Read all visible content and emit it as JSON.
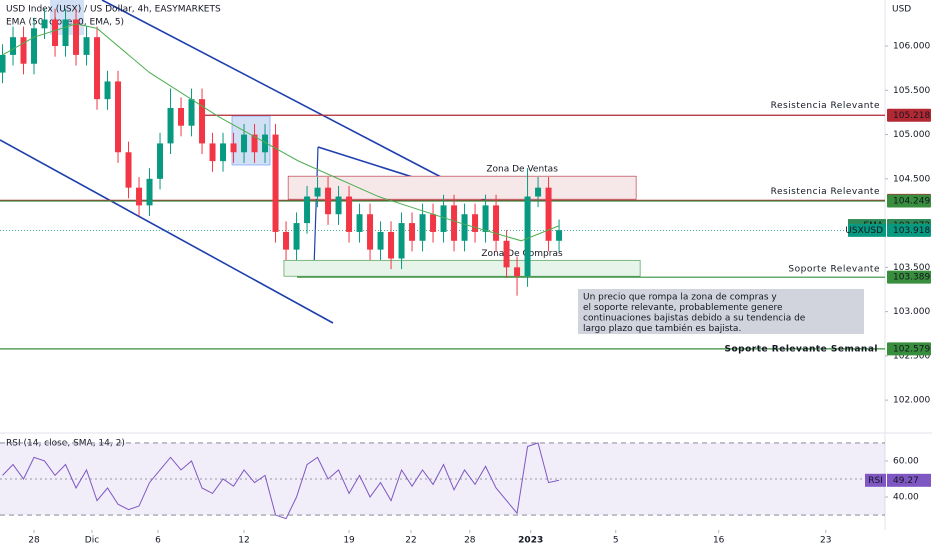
{
  "chart_data": {
    "type": "candlestick",
    "title": "USD Index (USX) / US Dollar, 4h, EASYMARKETS",
    "subtitle": "EMA (50, close, 0, EMA, 5)",
    "currency": "USD",
    "up_color": "#089981",
    "down_color": "#f23645",
    "x": [
      -1.5,
      -1,
      -0.5,
      0,
      0.5,
      1,
      1.5,
      2,
      2.5,
      3,
      3.5,
      4,
      4.5,
      5,
      5.5,
      6,
      6.5,
      7,
      7.5,
      8,
      8.5,
      9,
      9.5,
      10,
      10.5,
      11,
      11.5,
      12,
      12.5,
      13,
      13.5,
      14,
      14.5,
      15,
      15.5,
      16,
      16.5,
      17,
      17.5,
      18,
      18.5,
      19,
      19.5,
      20,
      20.5,
      21,
      21.5,
      22,
      22.5,
      23,
      23.5,
      24,
      24.5,
      25
    ],
    "open": [
      105.7,
      105.9,
      106.1,
      105.8,
      106.2,
      106.3,
      106.0,
      106.3,
      105.9,
      106.1,
      105.4,
      105.6,
      104.8,
      104.4,
      104.2,
      104.5,
      104.9,
      105.3,
      105.1,
      105.4,
      104.9,
      104.7,
      104.9,
      104.8,
      105.0,
      104.8,
      105.0,
      103.9,
      103.7,
      104.0,
      104.3,
      104.4,
      104.1,
      104.3,
      103.9,
      104.1,
      103.7,
      103.9,
      103.6,
      104.0,
      103.8,
      104.1,
      103.9,
      104.2,
      103.8,
      104.1,
      103.9,
      104.2,
      103.8,
      103.5,
      103.4,
      104.3,
      104.4,
      103.8
    ],
    "high": [
      106.02,
      106.22,
      106.22,
      106.32,
      106.42,
      106.42,
      106.42,
      106.42,
      106.22,
      106.22,
      105.72,
      105.72,
      104.92,
      104.52,
      104.62,
      105.02,
      105.52,
      105.42,
      105.52,
      105.52,
      105.02,
      105.02,
      105.02,
      105.12,
      105.12,
      105.12,
      105.12,
      104.02,
      104.12,
      104.42,
      104.52,
      104.52,
      104.42,
      104.42,
      104.22,
      104.22,
      104.02,
      104.02,
      104.12,
      104.12,
      104.22,
      104.22,
      104.32,
      104.32,
      104.22,
      104.22,
      104.32,
      104.32,
      103.92,
      103.62,
      104.62,
      104.52,
      104.52,
      104.04
    ],
    "low": [
      105.58,
      105.78,
      105.68,
      105.68,
      106.08,
      105.88,
      105.88,
      105.78,
      105.78,
      105.28,
      105.28,
      104.68,
      104.28,
      104.08,
      104.08,
      104.38,
      104.78,
      104.98,
      104.98,
      104.78,
      104.58,
      104.58,
      104.68,
      104.68,
      104.68,
      104.68,
      103.78,
      103.58,
      103.58,
      103.88,
      104.18,
      103.98,
      103.98,
      103.78,
      103.78,
      103.58,
      103.58,
      103.48,
      103.48,
      103.68,
      103.68,
      103.78,
      103.78,
      103.68,
      103.68,
      103.78,
      103.78,
      103.68,
      103.38,
      103.18,
      103.28,
      104.18,
      103.68,
      103.68
    ],
    "close": [
      105.9,
      106.1,
      105.8,
      106.2,
      106.3,
      106.0,
      106.3,
      105.9,
      106.1,
      105.4,
      105.6,
      104.8,
      104.4,
      104.2,
      104.5,
      104.9,
      105.3,
      105.1,
      105.4,
      104.9,
      104.7,
      104.9,
      104.8,
      105.0,
      104.8,
      105.0,
      103.9,
      103.7,
      104.0,
      104.3,
      104.4,
      104.1,
      104.3,
      103.9,
      104.1,
      103.7,
      103.9,
      103.6,
      104.0,
      103.8,
      104.1,
      103.9,
      104.2,
      103.8,
      104.1,
      103.9,
      104.2,
      103.8,
      103.5,
      103.4,
      104.3,
      104.4,
      103.8,
      103.92
    ],
    "ema": {
      "color": "#4caf50",
      "x": [
        -1.5,
        0,
        2,
        3,
        5.5,
        8.8,
        12.6,
        16.4,
        20.3,
        23.2,
        25
      ],
      "values": [
        105.9,
        106.1,
        106.25,
        106.2,
        105.7,
        105.2,
        104.7,
        104.3,
        104.0,
        103.8,
        103.97
      ]
    },
    "xlim": [
      -1.62,
      40.52
    ],
    "ylim": [
      101.64,
      106.52
    ],
    "xticks": [
      {
        "value": 0,
        "label": "28"
      },
      {
        "value": 2.76,
        "label": "Dic"
      },
      {
        "value": 5.9,
        "label": "6"
      },
      {
        "value": 10,
        "label": "12"
      },
      {
        "value": 15,
        "label": "19"
      },
      {
        "value": 17.95,
        "label": "22"
      },
      {
        "value": 20.75,
        "label": "28"
      },
      {
        "value": 23.65,
        "label": "2023"
      },
      {
        "value": 27.7,
        "label": "5"
      },
      {
        "value": 32.6,
        "label": "16"
      },
      {
        "value": 37.7,
        "label": "23"
      }
    ],
    "yticks": [
      {
        "value": 106,
        "label": "106.000"
      },
      {
        "value": 105.5,
        "label": "105.500"
      },
      {
        "value": 105,
        "label": "105.000"
      },
      {
        "value": 104.5,
        "label": "104.500"
      },
      {
        "value": 103.5,
        "label": "103.500"
      },
      {
        "value": 103,
        "label": "103.000"
      },
      {
        "value": 102.5,
        "label": "102.500"
      },
      {
        "value": 102,
        "label": "102.000"
      }
    ],
    "levels": [
      {
        "name": "Resistencia Relevante",
        "value": 105.218,
        "color": "#b22833"
      },
      {
        "name": "Resistencia Relevante",
        "value": 104.257,
        "color": "#b22833"
      },
      {
        "value": 104.249,
        "color": "#388e3c"
      },
      {
        "name": "EMA",
        "value": 103.972,
        "color": "#2e8b57"
      },
      {
        "name": "USXUSD",
        "value": 103.918,
        "color": "#089981"
      },
      {
        "name": "Soporte Relevante",
        "value": 103.389,
        "color": "#388e3c"
      },
      {
        "name": "Soporte Relevante Semanal",
        "value": 102.579,
        "color": "#388e3c"
      }
    ],
    "zones": [
      {
        "name": "Zona De Ventas",
        "x": [
          12.1,
          28.67
        ],
        "top": 104.53,
        "bottom": 104.27,
        "color": "#b22833",
        "fill": "#f6e8e8"
      },
      {
        "name": "Zona De Compras",
        "x": [
          11.9,
          28.86
        ],
        "top": 103.58,
        "bottom": 103.4,
        "color": "#388e3c",
        "fill": "#e6f4ea"
      }
    ],
    "annotation": [
      "Un precio que rompa la zona de compras y",
      "el soporte relevante, probablemente genere",
      "continuaciones bajistas debido a su tendencia de",
      "largo plazo que también es bajista."
    ],
    "rsi": {
      "title": "RSI (14, close, SMA, 14, 2)",
      "label": "RSI",
      "color": "#7e57c2",
      "ylim": [
        21.7,
        74.4
      ],
      "yticks": [
        {
          "value": 60,
          "label": "60.00"
        },
        {
          "value": 40,
          "label": "40.00"
        }
      ],
      "levels": [
        70,
        50,
        30
      ],
      "values": [
        52,
        58,
        50,
        62,
        60,
        52,
        58,
        45,
        55,
        38,
        45,
        36,
        33,
        35,
        48,
        55,
        62,
        55,
        60,
        45,
        42,
        50,
        46,
        55,
        48,
        52,
        30,
        28,
        40,
        58,
        62,
        50,
        55,
        42,
        52,
        40,
        48,
        38,
        55,
        46,
        55,
        47,
        58,
        44,
        55,
        47,
        57,
        45,
        38,
        31,
        68,
        70,
        48,
        49.27
      ]
    }
  }
}
